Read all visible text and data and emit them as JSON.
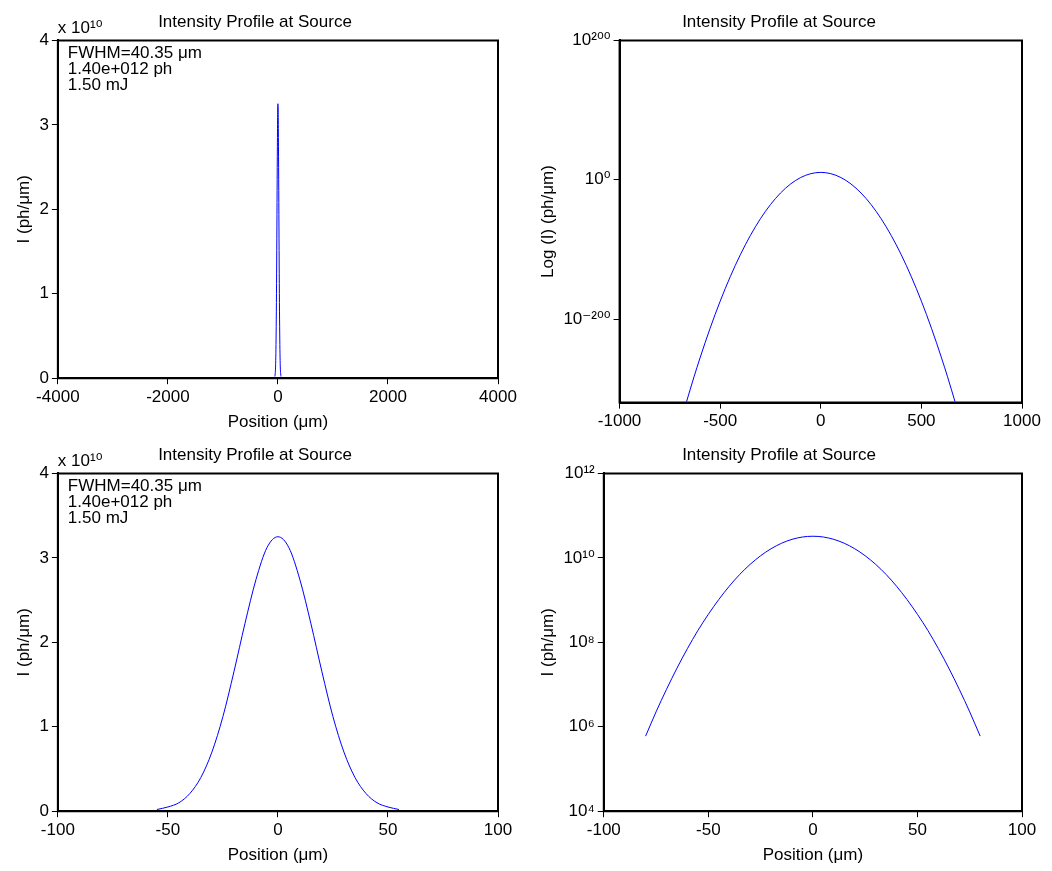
{
  "chart_data": [
    {
      "type": "line",
      "title": "Intensity Profile at Source",
      "xlabel": "Position (μm)",
      "ylabel": "I (ph/μm)",
      "annotations": [
        "x 10¹⁰",
        "FWHM=40.35 μm",
        "1.40e+012 ph",
        "1.50 mJ"
      ],
      "series": [
        {
          "color": "#0000ff",
          "x": [
            -55,
            -50,
            -45,
            -40,
            -35,
            -30,
            -25,
            -20,
            -15,
            -10,
            -5,
            0,
            5,
            10,
            15,
            20,
            25,
            30,
            35,
            40,
            45,
            50,
            55
          ],
          "values": [
            0.02,
            0.05,
            0.1,
            0.21,
            0.4,
            0.7,
            1.12,
            1.65,
            2.22,
            2.74,
            3.12,
            3.25,
            3.12,
            2.74,
            2.22,
            1.65,
            1.12,
            0.7,
            0.4,
            0.21,
            0.1,
            0.05,
            0.02
          ]
        }
      ],
      "xlim": [
        -4000,
        4000
      ],
      "xticks": [
        -4000,
        -2000,
        0,
        2000,
        4000
      ],
      "ylim": [
        0,
        4
      ],
      "yticks": [
        0,
        1,
        2,
        3,
        4
      ],
      "grid": false,
      "legend": false,
      "marker": "none",
      "line_style": "solid"
    },
    {
      "type": "line",
      "title": "Intensity Profile at Source",
      "ylabel": "Log (I) (ph/μm)",
      "series": [
        {
          "color": "#0000ff",
          "x": [
            -667,
            -630,
            -600,
            -550,
            -500,
            -450,
            -400,
            -350,
            -300,
            -250,
            -200,
            -150,
            -100,
            -50,
            0,
            50,
            100,
            150,
            200,
            250,
            300,
            350,
            400,
            450,
            500,
            550,
            600,
            630,
            667
          ],
          "values": [
            3e-319,
            1e-283,
            1.6e-256,
            6e-214,
            4e-175,
            5e-140,
            1.6e-108,
            8e-81,
            9e-57,
            1.9e-36,
            8.5e-20,
            7.4e-07,
            1300.0,
            460000000.0,
            32500000000.0,
            460000000.0,
            1300.0,
            7.4e-07,
            8.5e-20,
            1.9e-36,
            9e-57,
            8e-81,
            1.6e-108,
            5e-140,
            4e-175,
            6e-214,
            1.6e-256,
            1e-283,
            3e-319
          ]
        }
      ],
      "xlim": [
        -1000,
        1000
      ],
      "xticks": [
        -1000,
        -500,
        0,
        500,
        1000
      ],
      "ylim": [
        1e-320,
        1e+200
      ],
      "yticks": [
        {
          "value": 1e-200,
          "label": "10⁻²⁰⁰"
        },
        {
          "value": 1,
          "label": "10⁰"
        },
        {
          "value": 1e+200,
          "label": "10²⁰⁰"
        }
      ],
      "log": "y",
      "grid": false,
      "legend": false,
      "marker": "none",
      "line_style": "solid"
    },
    {
      "type": "line",
      "title": "Intensity Profile at Source",
      "xlabel": "Position (μm)",
      "ylabel": "I (ph/μm)",
      "annotations": [
        "x 10¹⁰",
        "FWHM=40.35 μm",
        "1.40e+012 ph",
        "1.50 mJ"
      ],
      "series": [
        {
          "color": "#0000ff",
          "x": [
            -55,
            -50,
            -45,
            -40,
            -35,
            -30,
            -25,
            -20,
            -15,
            -10,
            -5,
            0,
            5,
            10,
            15,
            20,
            25,
            30,
            35,
            40,
            45,
            50,
            55
          ],
          "values": [
            0.02,
            0.05,
            0.1,
            0.21,
            0.4,
            0.7,
            1.12,
            1.65,
            2.22,
            2.74,
            3.12,
            3.25,
            3.12,
            2.74,
            2.22,
            1.65,
            1.12,
            0.7,
            0.4,
            0.21,
            0.1,
            0.05,
            0.02
          ]
        }
      ],
      "xlim": [
        -100,
        100
      ],
      "xticks": [
        -100,
        -50,
        0,
        50,
        100
      ],
      "ylim": [
        0,
        4
      ],
      "yticks": [
        0,
        1,
        2,
        3,
        4
      ],
      "grid": false,
      "legend": false,
      "marker": "none",
      "line_style": "solid"
    },
    {
      "type": "line",
      "title": "Intensity Profile at Source",
      "xlabel": "Position (μm)",
      "ylabel": "I (ph/μm)",
      "series": [
        {
          "color": "#0000ff",
          "x": [
            -80,
            -75,
            -70,
            -65,
            -60,
            -55,
            -50,
            -45,
            -40,
            -35,
            -30,
            -25,
            -20,
            -15,
            -10,
            -5,
            0,
            5,
            10,
            15,
            20,
            25,
            30,
            35,
            40,
            45,
            50,
            55,
            60,
            65,
            70,
            75,
            80
          ],
          "values": [
            600000.0,
            2250000.0,
            7700000.0,
            24400000.0,
            71000000.0,
            190000000.0,
            460000000.0,
            1030000000.0,
            2130000000.0,
            4040000000.0,
            7020000000.0,
            11210000000.0,
            16450000000.0,
            22160000000.0,
            27410000000.0,
            31150000000.0,
            32500000000.0,
            31150000000.0,
            27410000000.0,
            22160000000.0,
            16450000000.0,
            11210000000.0,
            7020000000.0,
            4040000000.0,
            2130000000.0,
            1030000000.0,
            460000000.0,
            190000000.0,
            71000000.0,
            24400000.0,
            7700000.0,
            2250000.0,
            600000.0
          ]
        }
      ],
      "xlim": [
        -100,
        100
      ],
      "xticks": [
        -100,
        -50,
        0,
        50,
        100
      ],
      "ylim": [
        10000.0,
        1000000000000.0
      ],
      "yticks": [
        {
          "value": 10000.0,
          "label": "10⁴"
        },
        {
          "value": 1000000.0,
          "label": "10⁶"
        },
        {
          "value": 100000000.0,
          "label": "10⁸"
        },
        {
          "value": 10000000000.0,
          "label": "10¹⁰"
        },
        {
          "value": 1000000000000.0,
          "label": "10¹²"
        }
      ],
      "log": "y",
      "grid": false,
      "legend": false,
      "marker": "none",
      "line_style": "solid"
    }
  ]
}
